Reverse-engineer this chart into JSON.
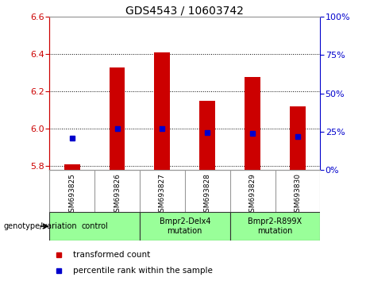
{
  "title": "GDS4543 / 10603742",
  "samples": [
    "GSM693825",
    "GSM693826",
    "GSM693827",
    "GSM693828",
    "GSM693829",
    "GSM693830"
  ],
  "red_values": [
    5.81,
    6.33,
    6.41,
    6.15,
    6.28,
    6.12
  ],
  "blue_values_left": [
    5.95,
    6.0,
    6.0,
    5.98,
    5.975,
    5.96
  ],
  "ylim_left": [
    5.78,
    6.6
  ],
  "ylim_right": [
    0,
    100
  ],
  "yticks_left": [
    5.8,
    6.0,
    6.2,
    6.4,
    6.6
  ],
  "yticks_right": [
    0,
    25,
    50,
    75,
    100
  ],
  "bar_bottom": 5.78,
  "red_color": "#cc0000",
  "blue_color": "#0000cc",
  "grid_color": "#000000",
  "group_boundaries": [
    [
      -0.5,
      1.5,
      "control"
    ],
    [
      1.5,
      3.5,
      "Bmpr2-Delx4\nmutation"
    ],
    [
      3.5,
      5.5,
      "Bmpr2-R899X\nmutation"
    ]
  ],
  "group_color": "#99ff99",
  "legend_label_red": "transformed count",
  "legend_label_blue": "percentile rank within the sample",
  "genotype_label": "genotype/variation",
  "sample_bg_color": "#cccccc",
  "plot_bg_color": "#ffffff",
  "left_yaxis_color": "#cc0000",
  "right_yaxis_color": "#0000cc",
  "bar_width": 0.35
}
